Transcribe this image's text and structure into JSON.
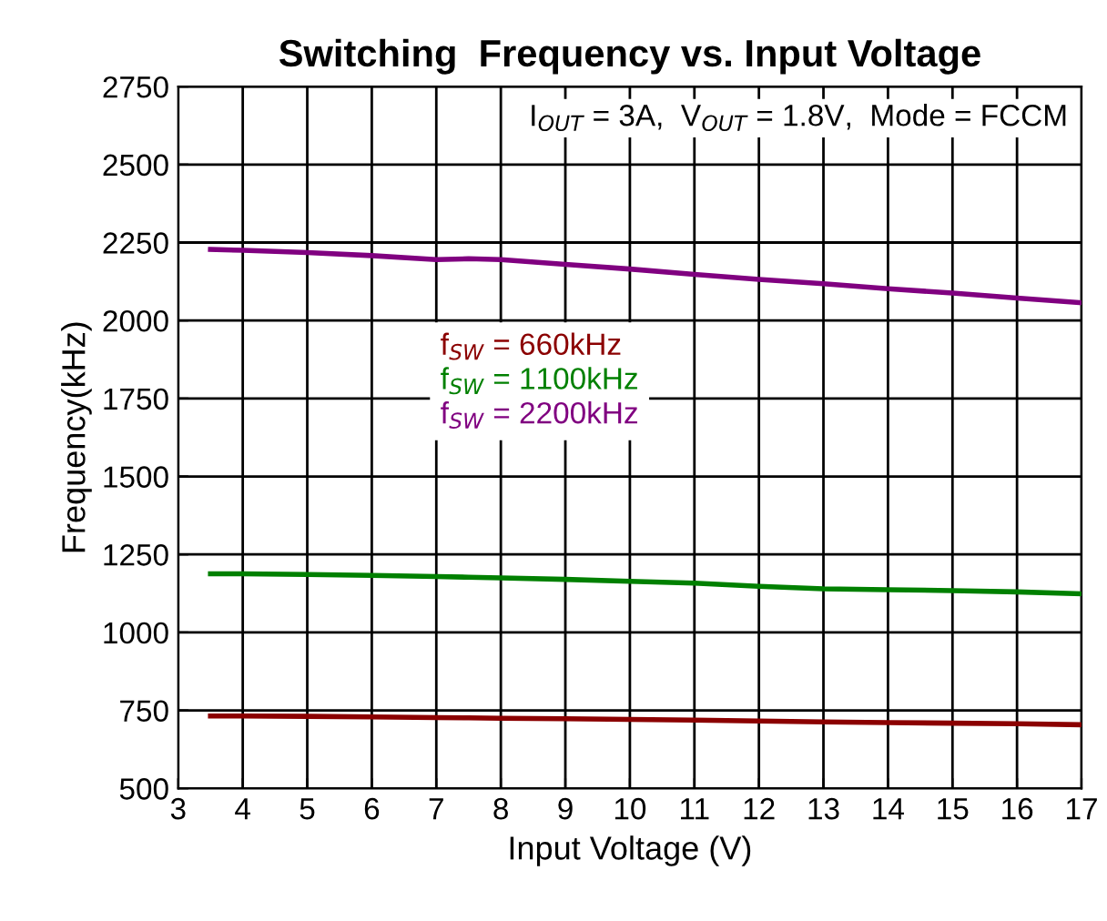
{
  "chart_data": {
    "type": "line",
    "title": "Switching  Frequency vs. Input Voltage",
    "xlabel": "Input Voltage (V)",
    "ylabel": "Frequency(kHz)",
    "annotations": [
      "I$_{OUT}$ = 3A,  V$_{OUT}$ = 1.8V,  Mode = FCCM"
    ],
    "x": [
      3.5,
      4,
      5,
      6,
      7,
      7.5,
      8,
      9,
      10,
      11,
      12,
      13,
      14,
      15,
      16,
      17
    ],
    "series": [
      {
        "name": "f$_{SW}$ = 660kHz",
        "color": "#8b0000",
        "values": [
          732,
          732,
          731,
          729,
          727,
          726,
          725,
          723,
          721,
          719,
          716,
          713,
          711,
          709,
          707,
          704
        ]
      },
      {
        "name": "f$_{SW}$ = 1100kHz",
        "color": "#008000",
        "values": [
          1188,
          1188,
          1186,
          1183,
          1179,
          1177,
          1175,
          1170,
          1164,
          1158,
          1148,
          1140,
          1137,
          1134,
          1130,
          1124
        ]
      },
      {
        "name": "f$_{SW}$ = 2200kHz",
        "color": "#800080",
        "values": [
          2228,
          2225,
          2218,
          2208,
          2195,
          2198,
          2195,
          2180,
          2165,
          2148,
          2132,
          2118,
          2102,
          2088,
          2072,
          2057
        ]
      }
    ],
    "xlim": [
      3,
      17
    ],
    "xticks": [
      3,
      4,
      5,
      6,
      7,
      8,
      9,
      10,
      11,
      12,
      13,
      14,
      15,
      16,
      17
    ],
    "ylim": [
      500,
      2750
    ],
    "yticks": [
      500,
      750,
      1000,
      1250,
      1500,
      1750,
      2000,
      2250,
      2500,
      2750
    ],
    "grid": true,
    "legend": "center",
    "line_style": "solid",
    "marker": "none"
  }
}
